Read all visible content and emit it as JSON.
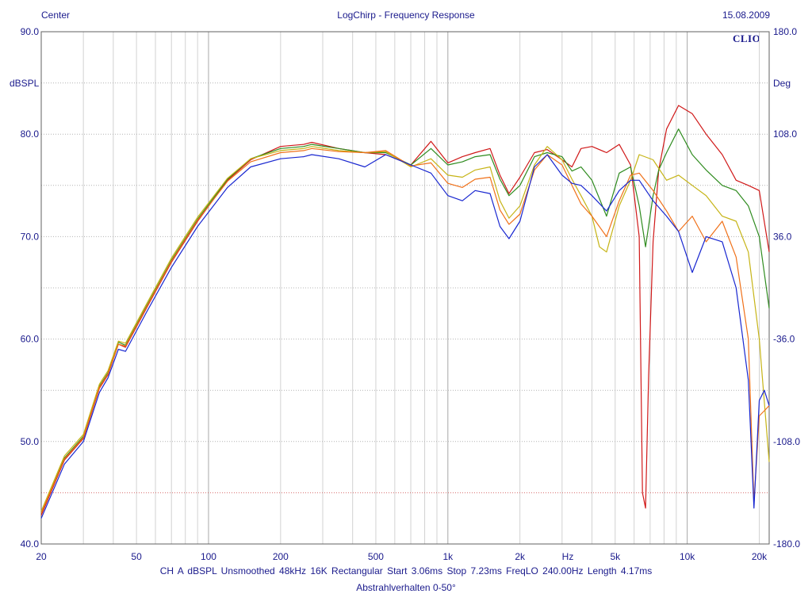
{
  "header": {
    "left": "Center",
    "center": "LogChirp - Frequency Response",
    "right": "15.08.2009"
  },
  "brand": "CLIO",
  "info_line": "CH A   dBSPL   Unsmoothed   48kHz   16K   Rectangular   Start 3.06ms   Stop 7.23ms   FreqLO 240.00Hz   Length 4.17ms",
  "footnote": "Abstrahlverhalten 0-50°",
  "chart_data": {
    "type": "line",
    "grid": true,
    "x_scale": "log",
    "xlim": [
      20,
      22000
    ],
    "ylim": [
      40,
      90
    ],
    "y2lim": [
      -180,
      180
    ],
    "ylabel": "dBSPL",
    "y2label": "Deg",
    "xlabel": "Hz",
    "x_ticks": [
      {
        "value": 20,
        "label": "20"
      },
      {
        "value": 50,
        "label": "50"
      },
      {
        "value": 100,
        "label": "100"
      },
      {
        "value": 200,
        "label": "200"
      },
      {
        "value": 500,
        "label": "500"
      },
      {
        "value": 1000,
        "label": "1k"
      },
      {
        "value": 2000,
        "label": "2k"
      },
      {
        "value": 5000,
        "label": "5k"
      },
      {
        "value": 10000,
        "label": "10k"
      },
      {
        "value": 20000,
        "label": "20k"
      }
    ],
    "y_ticks": [
      {
        "value": 90,
        "label": "90.0"
      },
      {
        "value": 80,
        "label": "80.0"
      },
      {
        "value": 70,
        "label": "70.0"
      },
      {
        "value": 60,
        "label": "60.0"
      },
      {
        "value": 50,
        "label": "50.0"
      },
      {
        "value": 40,
        "label": "40.0"
      }
    ],
    "y2_ticks": [
      {
        "value": 180,
        "label": "180.0"
      },
      {
        "value": 108,
        "label": "108.0"
      },
      {
        "value": 36,
        "label": "36.0"
      },
      {
        "value": -36,
        "label": "-36.0"
      },
      {
        "value": -108,
        "label": "-108.0"
      },
      {
        "value": -180,
        "label": "-180.0"
      }
    ],
    "reference_line_db": 45,
    "series": [
      {
        "color": "#d01818",
        "points": [
          [
            20,
            42.8
          ],
          [
            25,
            48.2
          ],
          [
            30,
            50.3
          ],
          [
            35,
            55.2
          ],
          [
            38,
            56.5
          ],
          [
            42,
            59.5
          ],
          [
            45,
            59.2
          ],
          [
            55,
            63.0
          ],
          [
            70,
            67.5
          ],
          [
            90,
            71.5
          ],
          [
            120,
            75.5
          ],
          [
            150,
            77.5
          ],
          [
            200,
            78.8
          ],
          [
            250,
            79.0
          ],
          [
            270,
            79.2
          ],
          [
            350,
            78.6
          ],
          [
            450,
            78.2
          ],
          [
            550,
            78.0
          ],
          [
            700,
            77.0
          ],
          [
            850,
            79.3
          ],
          [
            1000,
            77.2
          ],
          [
            1150,
            77.8
          ],
          [
            1300,
            78.2
          ],
          [
            1500,
            78.6
          ],
          [
            1650,
            76.0
          ],
          [
            1800,
            74.2
          ],
          [
            2000,
            75.8
          ],
          [
            2300,
            78.2
          ],
          [
            2600,
            78.5
          ],
          [
            3000,
            77.5
          ],
          [
            3300,
            76.8
          ],
          [
            3600,
            78.6
          ],
          [
            4000,
            78.8
          ],
          [
            4600,
            78.2
          ],
          [
            5200,
            79.0
          ],
          [
            5800,
            77.0
          ],
          [
            6300,
            70.0
          ],
          [
            6500,
            45.0
          ],
          [
            6700,
            43.5
          ],
          [
            6900,
            56.5
          ],
          [
            7200,
            69.5
          ],
          [
            7600,
            76.5
          ],
          [
            8200,
            80.5
          ],
          [
            9200,
            82.8
          ],
          [
            10500,
            82.0
          ],
          [
            12000,
            80.0
          ],
          [
            14000,
            78.0
          ],
          [
            16000,
            75.5
          ],
          [
            18000,
            75.0
          ],
          [
            20000,
            74.5
          ],
          [
            22000,
            68.5
          ]
        ]
      },
      {
        "color": "#2e8b1e",
        "points": [
          [
            20,
            43.0
          ],
          [
            25,
            48.4
          ],
          [
            30,
            50.5
          ],
          [
            35,
            55.4
          ],
          [
            38,
            56.7
          ],
          [
            42,
            59.7
          ],
          [
            45,
            59.4
          ],
          [
            55,
            63.2
          ],
          [
            70,
            67.7
          ],
          [
            90,
            71.7
          ],
          [
            120,
            75.6
          ],
          [
            150,
            77.6
          ],
          [
            200,
            78.6
          ],
          [
            250,
            78.8
          ],
          [
            270,
            79.0
          ],
          [
            350,
            78.6
          ],
          [
            450,
            78.2
          ],
          [
            550,
            78.2
          ],
          [
            700,
            77.0
          ],
          [
            850,
            78.6
          ],
          [
            1000,
            77.0
          ],
          [
            1150,
            77.3
          ],
          [
            1300,
            77.8
          ],
          [
            1500,
            78.0
          ],
          [
            1650,
            75.6
          ],
          [
            1800,
            74.0
          ],
          [
            2000,
            75.0
          ],
          [
            2300,
            77.8
          ],
          [
            2600,
            78.2
          ],
          [
            3000,
            77.8
          ],
          [
            3300,
            76.4
          ],
          [
            3600,
            76.8
          ],
          [
            4000,
            75.5
          ],
          [
            4600,
            72.0
          ],
          [
            5200,
            76.2
          ],
          [
            5800,
            76.8
          ],
          [
            6300,
            73.0
          ],
          [
            6700,
            69.0
          ],
          [
            7200,
            74.0
          ],
          [
            7600,
            76.5
          ],
          [
            8200,
            78.2
          ],
          [
            9200,
            80.5
          ],
          [
            10500,
            78.0
          ],
          [
            12000,
            76.5
          ],
          [
            14000,
            75.0
          ],
          [
            16000,
            74.5
          ],
          [
            18000,
            73.0
          ],
          [
            20000,
            70.0
          ],
          [
            22000,
            63.0
          ]
        ]
      },
      {
        "color": "#c6b416",
        "points": [
          [
            20,
            43.2
          ],
          [
            25,
            48.6
          ],
          [
            30,
            50.7
          ],
          [
            35,
            55.6
          ],
          [
            38,
            56.9
          ],
          [
            42,
            59.8
          ],
          [
            45,
            59.6
          ],
          [
            55,
            63.4
          ],
          [
            70,
            67.9
          ],
          [
            90,
            71.9
          ],
          [
            120,
            75.7
          ],
          [
            150,
            77.6
          ],
          [
            200,
            78.4
          ],
          [
            250,
            78.6
          ],
          [
            270,
            78.8
          ],
          [
            350,
            78.4
          ],
          [
            450,
            78.2
          ],
          [
            550,
            78.3
          ],
          [
            700,
            76.8
          ],
          [
            850,
            77.6
          ],
          [
            1000,
            76.0
          ],
          [
            1150,
            75.8
          ],
          [
            1300,
            76.5
          ],
          [
            1500,
            76.8
          ],
          [
            1650,
            73.5
          ],
          [
            1800,
            71.8
          ],
          [
            2000,
            73.0
          ],
          [
            2300,
            77.0
          ],
          [
            2600,
            78.8
          ],
          [
            3000,
            77.5
          ],
          [
            3300,
            75.6
          ],
          [
            3600,
            74.0
          ],
          [
            4000,
            72.0
          ],
          [
            4300,
            69.0
          ],
          [
            4600,
            68.5
          ],
          [
            5200,
            73.0
          ],
          [
            5800,
            75.5
          ],
          [
            6300,
            78.0
          ],
          [
            7200,
            77.5
          ],
          [
            8200,
            75.5
          ],
          [
            9200,
            76.0
          ],
          [
            10500,
            75.0
          ],
          [
            12000,
            74.0
          ],
          [
            14000,
            72.0
          ],
          [
            16000,
            71.5
          ],
          [
            18000,
            68.5
          ],
          [
            20000,
            60.0
          ],
          [
            22000,
            48.0
          ]
        ]
      },
      {
        "color": "#f07018",
        "points": [
          [
            20,
            43.0
          ],
          [
            25,
            48.3
          ],
          [
            30,
            50.4
          ],
          [
            35,
            55.3
          ],
          [
            38,
            56.6
          ],
          [
            42,
            59.5
          ],
          [
            45,
            59.3
          ],
          [
            55,
            63.1
          ],
          [
            70,
            67.6
          ],
          [
            90,
            71.6
          ],
          [
            120,
            75.4
          ],
          [
            150,
            77.3
          ],
          [
            200,
            78.2
          ],
          [
            250,
            78.4
          ],
          [
            270,
            78.6
          ],
          [
            350,
            78.3
          ],
          [
            450,
            78.2
          ],
          [
            550,
            78.4
          ],
          [
            700,
            76.9
          ],
          [
            850,
            77.2
          ],
          [
            1000,
            75.2
          ],
          [
            1150,
            74.8
          ],
          [
            1300,
            75.6
          ],
          [
            1500,
            75.8
          ],
          [
            1650,
            72.6
          ],
          [
            1800,
            71.2
          ],
          [
            2000,
            72.2
          ],
          [
            2300,
            76.5
          ],
          [
            2600,
            78.0
          ],
          [
            3000,
            77.0
          ],
          [
            3300,
            75.0
          ],
          [
            3600,
            73.2
          ],
          [
            4000,
            72.0
          ],
          [
            4600,
            70.0
          ],
          [
            5200,
            73.5
          ],
          [
            5800,
            76.0
          ],
          [
            6300,
            76.2
          ],
          [
            7200,
            74.5
          ],
          [
            8200,
            72.5
          ],
          [
            9200,
            70.5
          ],
          [
            10500,
            72.0
          ],
          [
            12000,
            69.5
          ],
          [
            14000,
            71.5
          ],
          [
            16000,
            68.0
          ],
          [
            18000,
            60.0
          ],
          [
            19000,
            44.0
          ],
          [
            20000,
            52.5
          ],
          [
            21000,
            53.0
          ],
          [
            22000,
            53.5
          ]
        ]
      },
      {
        "color": "#1826d0",
        "points": [
          [
            20,
            42.5
          ],
          [
            25,
            47.8
          ],
          [
            30,
            50.0
          ],
          [
            35,
            54.8
          ],
          [
            38,
            56.2
          ],
          [
            42,
            59.0
          ],
          [
            45,
            58.8
          ],
          [
            55,
            62.6
          ],
          [
            70,
            67.0
          ],
          [
            90,
            71.0
          ],
          [
            120,
            74.8
          ],
          [
            150,
            76.8
          ],
          [
            200,
            77.6
          ],
          [
            250,
            77.8
          ],
          [
            270,
            78.0
          ],
          [
            350,
            77.6
          ],
          [
            450,
            76.8
          ],
          [
            550,
            78.0
          ],
          [
            700,
            77.0
          ],
          [
            850,
            76.2
          ],
          [
            1000,
            74.0
          ],
          [
            1150,
            73.5
          ],
          [
            1300,
            74.5
          ],
          [
            1500,
            74.2
          ],
          [
            1650,
            71.0
          ],
          [
            1800,
            69.8
          ],
          [
            2000,
            71.5
          ],
          [
            2300,
            76.8
          ],
          [
            2600,
            78.0
          ],
          [
            3000,
            76.0
          ],
          [
            3300,
            75.2
          ],
          [
            3600,
            75.0
          ],
          [
            4000,
            74.0
          ],
          [
            4600,
            72.5
          ],
          [
            5200,
            74.5
          ],
          [
            5800,
            75.5
          ],
          [
            6300,
            75.5
          ],
          [
            7200,
            73.5
          ],
          [
            8200,
            72.0
          ],
          [
            9200,
            70.5
          ],
          [
            10500,
            66.5
          ],
          [
            12000,
            70.0
          ],
          [
            14000,
            69.5
          ],
          [
            16000,
            65.0
          ],
          [
            18000,
            56.0
          ],
          [
            19000,
            43.5
          ],
          [
            20000,
            54.0
          ],
          [
            21000,
            55.0
          ],
          [
            22000,
            53.5
          ]
        ]
      }
    ]
  }
}
